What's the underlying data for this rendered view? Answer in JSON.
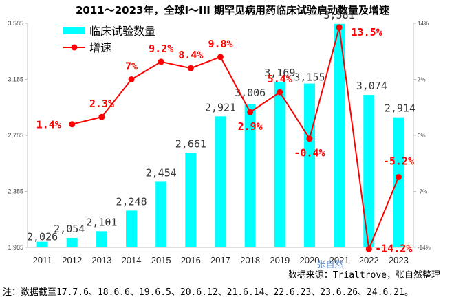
{
  "chart_data": {
    "type": "bar+line",
    "title": "2011～2023年，全球I～III 期罕见病用药临床试验启动数量及增速",
    "categories": [
      "2011",
      "2012",
      "2013",
      "2014",
      "2015",
      "2016",
      "2017",
      "2018",
      "2019",
      "2020",
      "2021",
      "2022",
      "2023"
    ],
    "series": [
      {
        "name": "临床试验数量",
        "type": "bar",
        "axis": "left",
        "color": "#00ffff",
        "values": [
          2026,
          2054,
          2101,
          2248,
          2454,
          2661,
          2921,
          3006,
          3169,
          3155,
          3581,
          3074,
          2914
        ],
        "labels": [
          "2,026",
          "2,054",
          "2,101",
          "2,248",
          "2,454",
          "2,661",
          "2,921",
          "3,006",
          "3,169",
          "3,155",
          "3,581",
          "3,074",
          "2,914"
        ]
      },
      {
        "name": "增速",
        "type": "line",
        "axis": "right",
        "color": "#ff0000",
        "values": [
          null,
          1.4,
          2.3,
          7,
          9.2,
          8.4,
          9.8,
          2.9,
          5.4,
          -0.4,
          13.5,
          -14.2,
          -5.2
        ],
        "labels": [
          "",
          "1.4%",
          "2.3%",
          "7%",
          "9.2%",
          "8.4%",
          "9.8%",
          "2.9%",
          "5.4%",
          "-0.4%",
          "13.5%",
          "-14.2%",
          "-5.2%"
        ]
      }
    ],
    "y_left": {
      "range": [
        1985,
        3585
      ],
      "ticks": [
        "1,985",
        "2,385",
        "2,785",
        "3,185",
        "3,585"
      ],
      "tick_values": [
        1985,
        2385,
        2785,
        3185,
        3585
      ]
    },
    "y_right": {
      "range": [
        -14,
        14
      ],
      "ticks": [
        "-14%",
        "-7%",
        "0%",
        "7%",
        "14%"
      ],
      "tick_values": [
        -14,
        -7,
        0,
        7,
        14
      ]
    },
    "legend_position": "top-left",
    "grid": false
  },
  "source_text": "数据来源：Trialtrove，张自然整理",
  "note_text": "注：数据截至17.7.6、18.6.6、19.6.5、20.6.12、21.6.14、22.6.23、23.6.26、24.6.21。",
  "watermark_text": "张自然"
}
